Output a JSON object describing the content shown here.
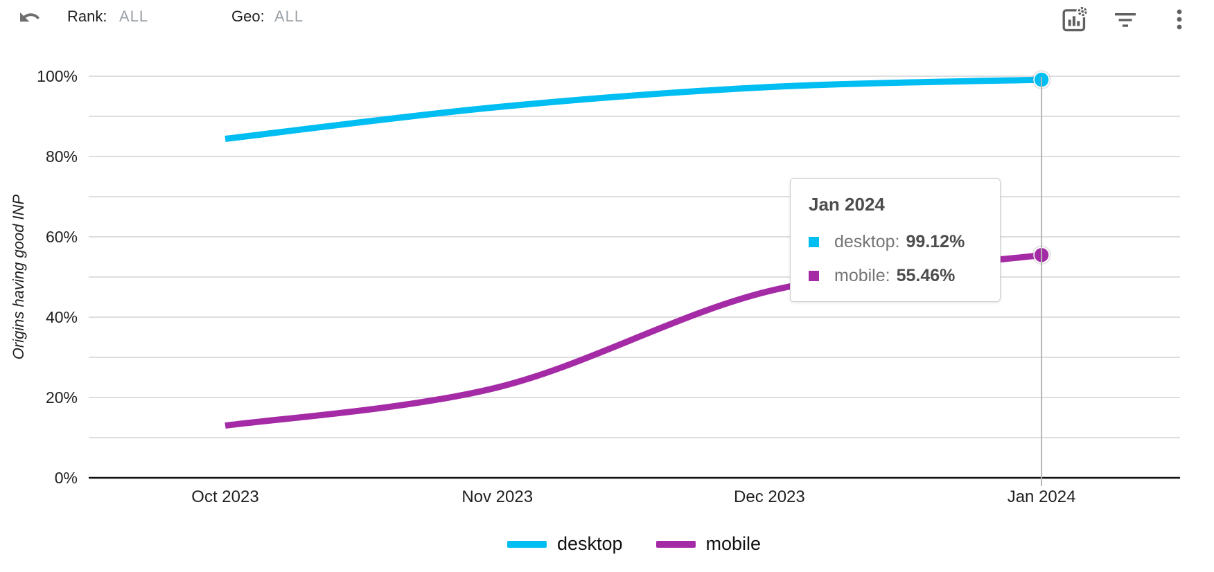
{
  "toolbar": {
    "rank": {
      "label": "Rank:",
      "value": "ALL"
    },
    "geo": {
      "label": "Geo:",
      "value": "ALL"
    }
  },
  "chart_data": {
    "type": "line",
    "ylabel": "Origins having good INP",
    "x": [
      "Oct 2023",
      "Nov 2023",
      "Dec 2023",
      "Jan 2024"
    ],
    "series": [
      {
        "name": "desktop",
        "color": "#00BDF2",
        "values": [
          84.4,
          92.3,
          97.3,
          99.12
        ]
      },
      {
        "name": "mobile",
        "color": "#A42BA5",
        "values": [
          13.0,
          22.5,
          46.5,
          55.46
        ]
      }
    ],
    "ylim": [
      0,
      100
    ],
    "y_tick_step": 20,
    "grid_step": 10,
    "y_tick_suffix": "%",
    "grid": true,
    "legend_position": "bottom",
    "highlight_x": "Jan 2024",
    "colors": {
      "gridline": "#d9d9d9",
      "axis": "#111111",
      "crosshair": "#b4b4b4"
    }
  },
  "tooltip": {
    "title": "Jan 2024",
    "rows": [
      {
        "label": "desktop:",
        "value": "99.12%",
        "color": "#00BDF2"
      },
      {
        "label": "mobile:",
        "value": "55.46%",
        "color": "#A42BA5"
      }
    ]
  }
}
